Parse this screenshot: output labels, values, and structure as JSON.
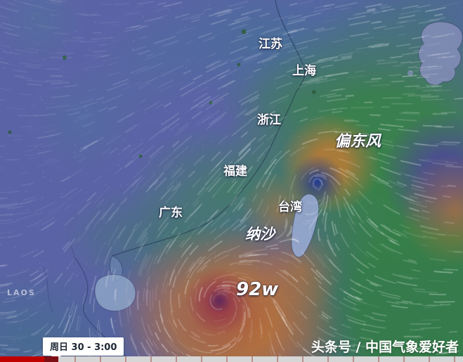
{
  "map": {
    "place_labels": [
      {
        "text": "江苏"
      },
      {
        "text": "上海"
      },
      {
        "text": "浙江"
      },
      {
        "text": "福建"
      },
      {
        "text": "广东"
      },
      {
        "text": "台湾"
      }
    ],
    "annotations": [
      {
        "text": "偏东风"
      },
      {
        "text": "纳沙"
      },
      {
        "text": "92w"
      }
    ],
    "basemap_labels": [
      {
        "text": "LAOS"
      }
    ]
  },
  "timeline": {
    "tooltip": "周日 30 - 3:00",
    "progress_color": "#c00000",
    "playhead_color": "#7d0f14",
    "track_color": "#d6d6d6"
  },
  "watermark": "头条号 / 中国气象爱好者",
  "wind_speed_colors": {
    "calm_purple": "#5b63a7",
    "light_teal": "#4a7ba6",
    "moderate_green": "#3c8a4b",
    "strong_orange": "#c07a3a",
    "severe_red_purple": "#8f3b5e",
    "storm_core_blue": "#1e3c96"
  }
}
